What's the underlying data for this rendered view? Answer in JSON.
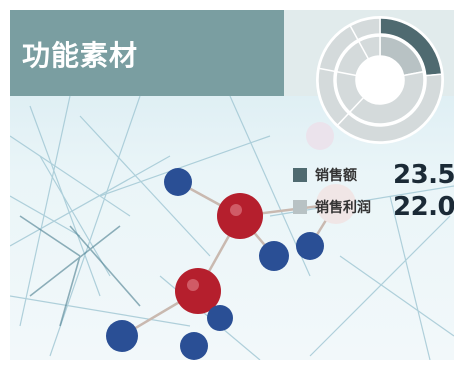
{
  "title": "功能素材",
  "legend": [
    {
      "label": "销售额",
      "value": "23.5",
      "unit": "%",
      "color": "#4f6a70"
    },
    {
      "label": "销售利润",
      "value": "22.0",
      "unit": "%",
      "color": "#b8c2c4"
    }
  ],
  "chart_data": {
    "type": "pie",
    "series": [
      {
        "name": "销售额",
        "values": [
          23.5,
          76.5
        ]
      },
      {
        "name": "销售利润",
        "values": [
          22.0,
          78.0
        ]
      }
    ]
  }
}
